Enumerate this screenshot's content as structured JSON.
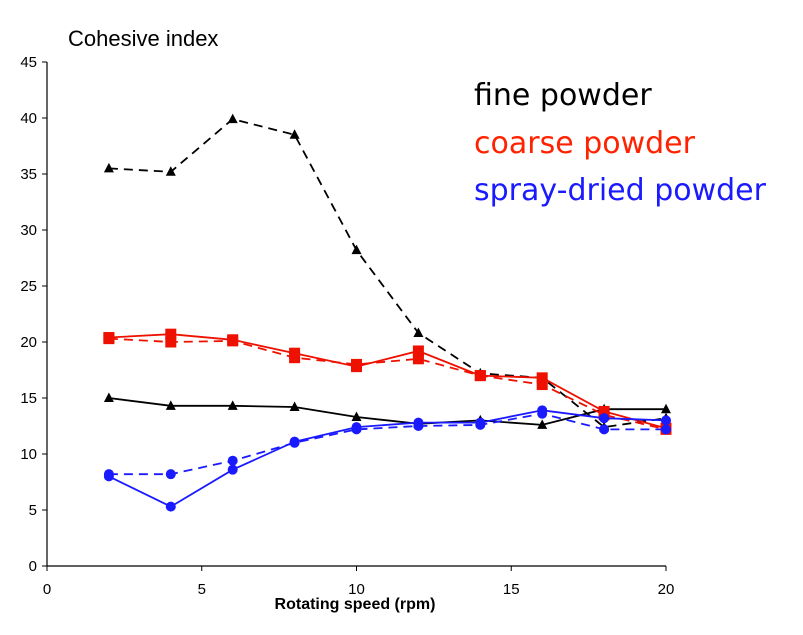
{
  "chart_data": {
    "type": "line",
    "title": "",
    "ylabel": "Cohesive index",
    "xlabel": "Rotating speed (rpm)",
    "xlim": [
      0,
      20
    ],
    "ylim": [
      0,
      45
    ],
    "x_ticks": [
      "0",
      "5",
      "10",
      "15",
      "20"
    ],
    "y_ticks": [
      "0",
      "5",
      "10",
      "15",
      "20",
      "25",
      "30",
      "35",
      "40",
      "45"
    ],
    "grid": false,
    "legend_position": "top-right",
    "legend": [
      {
        "label": "fine powder",
        "color": "#000000"
      },
      {
        "label": "coarse powder",
        "color": "#ff2200"
      },
      {
        "label": "spray-dried powder",
        "color": "#1a1aff"
      }
    ],
    "series": [
      {
        "group": "fine powder",
        "color": "#000000",
        "dash": true,
        "marker": "triangle",
        "x": [
          2,
          4,
          6,
          8,
          10,
          12,
          14,
          16,
          18,
          20
        ],
        "y": [
          35.5,
          35.2,
          39.9,
          38.5,
          28.2,
          20.8,
          17.2,
          16.8,
          12.4,
          13.2
        ]
      },
      {
        "group": "fine powder",
        "color": "#000000",
        "dash": false,
        "marker": "triangle",
        "x": [
          2,
          4,
          6,
          8,
          10,
          12,
          14,
          16,
          18,
          20
        ],
        "y": [
          15.0,
          14.3,
          14.3,
          14.2,
          13.3,
          12.7,
          13.0,
          12.6,
          14.0,
          14.0
        ]
      },
      {
        "group": "coarse powder",
        "color": "#ee1100",
        "dash": true,
        "marker": "square",
        "x": [
          2,
          4,
          6,
          8,
          10,
          12,
          14,
          16,
          18,
          20
        ],
        "y": [
          20.3,
          20.0,
          20.1,
          18.6,
          18.0,
          18.5,
          17.0,
          16.2,
          13.5,
          12.2
        ]
      },
      {
        "group": "coarse powder",
        "color": "#ee1100",
        "dash": false,
        "marker": "square",
        "x": [
          2,
          4,
          6,
          8,
          10,
          12,
          14,
          16,
          18,
          20
        ],
        "y": [
          20.4,
          20.7,
          20.2,
          19.0,
          17.8,
          19.2,
          17.0,
          16.8,
          13.8,
          12.3
        ]
      },
      {
        "group": "spray-dried powder",
        "color": "#1a1aff",
        "dash": true,
        "marker": "circle",
        "x": [
          2,
          4,
          6,
          8,
          10,
          12,
          14,
          16,
          18,
          20
        ],
        "y": [
          8.2,
          8.2,
          9.4,
          11.0,
          12.2,
          12.5,
          12.6,
          13.6,
          12.2,
          12.2
        ]
      },
      {
        "group": "spray-dried powder",
        "color": "#1a1aff",
        "dash": false,
        "marker": "circle",
        "x": [
          2,
          4,
          6,
          8,
          10,
          12,
          14,
          16,
          18,
          20
        ],
        "y": [
          8.0,
          5.3,
          8.6,
          11.1,
          12.4,
          12.8,
          12.8,
          13.9,
          13.2,
          13.0
        ]
      }
    ]
  }
}
